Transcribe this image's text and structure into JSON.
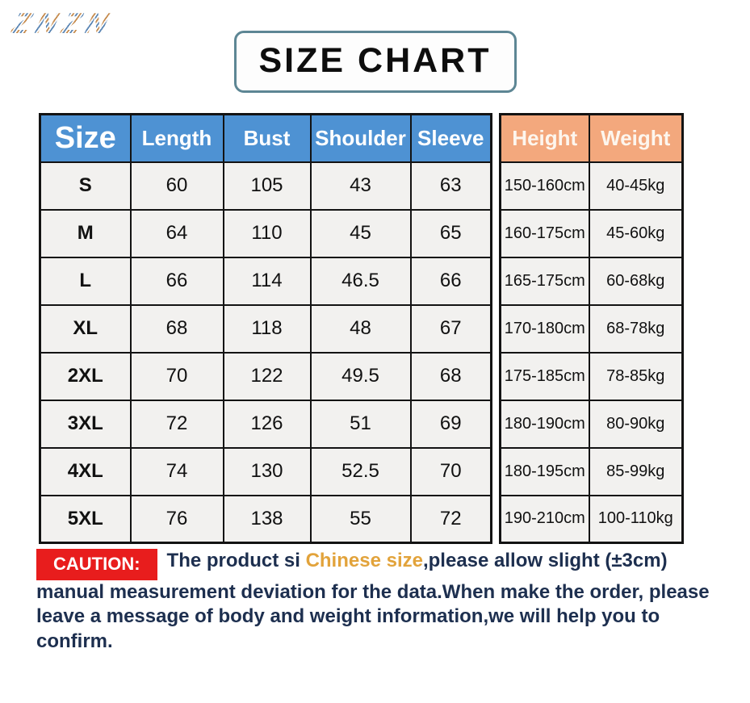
{
  "watermark": "ZNZN",
  "title": "SIZE CHART",
  "colors": {
    "header_blue": "#4e92d3",
    "header_peach": "#f3a87d",
    "caution_red": "#e81d1d",
    "highlight_gold": "#e2a33b",
    "caution_navy": "#1d2f4f",
    "title_border": "#5d8694",
    "cell_bg": "#f2f1ef"
  },
  "table": {
    "headers_left": [
      "Size",
      "Length",
      "Bust",
      "Shoulder",
      "Sleeve"
    ],
    "headers_right": [
      "Height",
      "Weight"
    ],
    "rows": [
      {
        "size": "S",
        "length": "60",
        "bust": "105",
        "shoulder": "43",
        "sleeve": "63",
        "height": "150-160cm",
        "weight": "40-45kg"
      },
      {
        "size": "M",
        "length": "64",
        "bust": "110",
        "shoulder": "45",
        "sleeve": "65",
        "height": "160-175cm",
        "weight": "45-60kg"
      },
      {
        "size": "L",
        "length": "66",
        "bust": "114",
        "shoulder": "46.5",
        "sleeve": "66",
        "height": "165-175cm",
        "weight": "60-68kg"
      },
      {
        "size": "XL",
        "length": "68",
        "bust": "118",
        "shoulder": "48",
        "sleeve": "67",
        "height": "170-180cm",
        "weight": "68-78kg"
      },
      {
        "size": "2XL",
        "length": "70",
        "bust": "122",
        "shoulder": "49.5",
        "sleeve": "68",
        "height": "175-185cm",
        "weight": "78-85kg"
      },
      {
        "size": "3XL",
        "length": "72",
        "bust": "126",
        "shoulder": "51",
        "sleeve": "69",
        "height": "180-190cm",
        "weight": "80-90kg"
      },
      {
        "size": "4XL",
        "length": "74",
        "bust": "130",
        "shoulder": "52.5",
        "sleeve": "70",
        "height": "180-195cm",
        "weight": "85-99kg"
      },
      {
        "size": "5XL",
        "length": "76",
        "bust": "138",
        "shoulder": "55",
        "sleeve": "72",
        "height": "190-210cm",
        "weight": "100-110kg"
      }
    ]
  },
  "caution": {
    "label": "CAUTION:",
    "text_before": "The product si ",
    "highlight": "Chinese size",
    "text_after": ",please allow slight (±3cm) manual measurement deviation for the data.When make the order, please leave a message of body and weight information,we will help you to confirm."
  },
  "chart_data": {
    "type": "table",
    "title": "SIZE CHART",
    "columns": [
      "Size",
      "Length",
      "Bust",
      "Shoulder",
      "Sleeve",
      "Height",
      "Weight"
    ],
    "rows": [
      [
        "S",
        60,
        105,
        43,
        63,
        "150-160cm",
        "40-45kg"
      ],
      [
        "M",
        64,
        110,
        45,
        65,
        "160-175cm",
        "45-60kg"
      ],
      [
        "L",
        66,
        114,
        46.5,
        66,
        "165-175cm",
        "60-68kg"
      ],
      [
        "XL",
        68,
        118,
        48,
        67,
        "170-180cm",
        "68-78kg"
      ],
      [
        "2XL",
        70,
        122,
        49.5,
        68,
        "175-185cm",
        "78-85kg"
      ],
      [
        "3XL",
        72,
        126,
        51,
        69,
        "180-190cm",
        "80-90kg"
      ],
      [
        "4XL",
        74,
        130,
        52.5,
        70,
        "180-195cm",
        "85-99kg"
      ],
      [
        "5XL",
        76,
        138,
        55,
        72,
        "190-210cm",
        "100-110kg"
      ]
    ]
  }
}
